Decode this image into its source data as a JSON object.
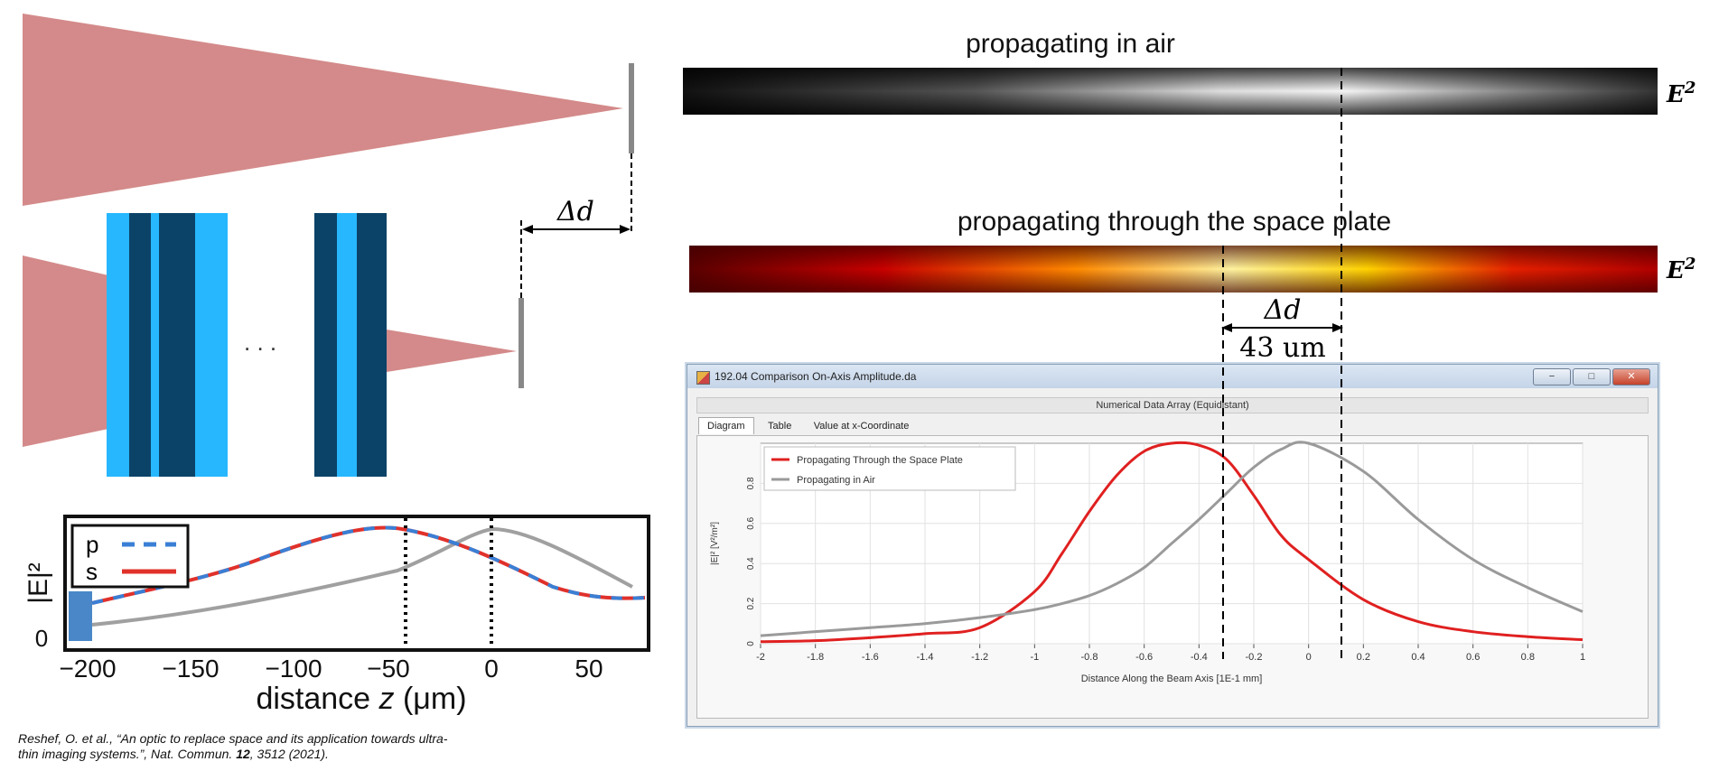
{
  "top_diagram": {
    "delta_label": "Δd",
    "ellipsis": ". . ."
  },
  "field_maps": {
    "air_title": "propagating in air",
    "plate_title": "propagating through the space plate",
    "e2_label": "E",
    "e2_exp": "2",
    "delta_label": "Δd",
    "delta_value": "43 um"
  },
  "small_plot": {
    "ylabel": "|E|²",
    "ytick": "0",
    "xlabel_prefix": "distance ",
    "xlabel_var": "z",
    "xlabel_unit": " (μm)",
    "xticks": [
      "−200",
      "−150",
      "−100",
      "−50",
      "0",
      "50"
    ],
    "legend": [
      {
        "label": "p",
        "style": "dashed",
        "color": "#3a7fd5"
      },
      {
        "label": "s",
        "style": "solid",
        "color": "#e0312b"
      }
    ]
  },
  "window": {
    "title": "192.04 Comparison On-Axis Amplitude.da",
    "subtitle": "Numerical Data Array (Equidistant)",
    "tabs": [
      "Diagram",
      "Table",
      "Value at x-Coordinate"
    ],
    "active_tab": "Diagram",
    "buttons": {
      "minimize": "−",
      "maximize": "□",
      "close": "✕"
    }
  },
  "chart_data": {
    "type": "line",
    "xlabel": "Distance Along the Beam Axis [1E-1 mm]",
    "ylabel": "|E|² [V²/m²]",
    "xlim": [
      -2,
      1
    ],
    "ylim": [
      0,
      1
    ],
    "xticks": [
      "-2",
      "-1.8",
      "-1.6",
      "-1.4",
      "-1.2",
      "-1",
      "-0.8",
      "-0.6",
      "-0.4",
      "-0.2",
      "0",
      "0.2",
      "0.4",
      "0.6",
      "0.8",
      "1"
    ],
    "yticks": [
      "0",
      "0.2",
      "0.4",
      "0.6",
      "0.8"
    ],
    "grid": true,
    "legend_position": "top-left",
    "x": [
      -2,
      -1.8,
      -1.6,
      -1.4,
      -1.2,
      -1.0,
      -0.9,
      -0.8,
      -0.7,
      -0.6,
      -0.5,
      -0.4,
      -0.3,
      -0.2,
      -0.1,
      0.0,
      0.2,
      0.4,
      0.6,
      0.8,
      1.0
    ],
    "series": [
      {
        "name": "Propagating Through the Space Plate",
        "color": "#e02020",
        "values": [
          0.01,
          0.015,
          0.03,
          0.05,
          0.08,
          0.26,
          0.45,
          0.66,
          0.84,
          0.96,
          1.0,
          0.99,
          0.92,
          0.74,
          0.54,
          0.42,
          0.22,
          0.11,
          0.06,
          0.035,
          0.02
        ]
      },
      {
        "name": "Propagating in Air",
        "color": "#9a9a9a",
        "values": [
          0.04,
          0.06,
          0.08,
          0.1,
          0.13,
          0.17,
          0.2,
          0.24,
          0.3,
          0.38,
          0.5,
          0.62,
          0.75,
          0.88,
          0.97,
          1.0,
          0.86,
          0.62,
          0.42,
          0.28,
          0.16
        ]
      }
    ]
  },
  "citation": {
    "line1": "Reshef, O. et al., “An optic to replace space and its application towards ultra-",
    "line2_a": "thin imaging systems.”, Nat. Commun. ",
    "line2_b": "12",
    "line2_c": ", 3512 (2021)."
  }
}
